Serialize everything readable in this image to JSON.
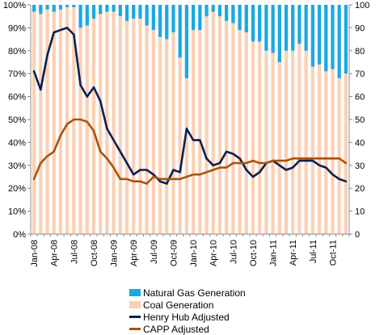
{
  "chart_data": {
    "type": "bar",
    "x": [
      "Jan-08",
      "Feb-08",
      "Mar-08",
      "Apr-08",
      "May-08",
      "Jun-08",
      "Jul-08",
      "Aug-08",
      "Sep-08",
      "Oct-08",
      "Nov-08",
      "Dec-08",
      "Jan-09",
      "Feb-09",
      "Mar-09",
      "Apr-09",
      "May-09",
      "Jun-09",
      "Jul-09",
      "Aug-09",
      "Sep-09",
      "Oct-09",
      "Nov-09",
      "Dec-09",
      "Jan-10",
      "Feb-10",
      "Mar-10",
      "Apr-10",
      "May-10",
      "Jun-10",
      "Jul-10",
      "Aug-10",
      "Sep-10",
      "Oct-10",
      "Nov-10",
      "Dec-10",
      "Jan-11",
      "Feb-11",
      "Mar-11",
      "Apr-11",
      "May-11",
      "Jun-11",
      "Jul-11",
      "Aug-11",
      "Sep-11",
      "Oct-11",
      "Nov-11",
      "Dec-11"
    ],
    "tick_labels": [
      "Jan-08",
      "Apr-08",
      "Jul-08",
      "Oct-08",
      "Jan-09",
      "Apr-09",
      "Jul-09",
      "Oct-09",
      "Jan-10",
      "Apr-10",
      "Jul-10",
      "Oct-10",
      "Jan-11",
      "Apr-11",
      "Jul-11",
      "Oct-11"
    ],
    "left_axis": {
      "range": [
        0,
        100
      ],
      "ticks": [
        "0%",
        "10%",
        "20%",
        "30%",
        "40%",
        "50%",
        "60%",
        "70%",
        "80%",
        "90%",
        "100%"
      ]
    },
    "right_axis": {
      "range": [
        0,
        100
      ],
      "ticks": [
        "0",
        "10",
        "20",
        "30",
        "40",
        "50",
        "60",
        "70",
        "80",
        "90",
        "100"
      ]
    },
    "grid": false,
    "legend_placement": "bottom",
    "series": [
      {
        "name": "Natural Gas Generation",
        "type": "stacked-bar",
        "axis": "left",
        "color": "#1ba9e1",
        "values": [
          3,
          4,
          2,
          3,
          2,
          1,
          1,
          10,
          9,
          6,
          4,
          3,
          3,
          5,
          7,
          6,
          6,
          9,
          11,
          14,
          15,
          12,
          23,
          32,
          11,
          11,
          5,
          3,
          5,
          7,
          8,
          11,
          12,
          16,
          16,
          20,
          21,
          25,
          20,
          20,
          17,
          20,
          27,
          26,
          29,
          28,
          32,
          30
        ]
      },
      {
        "name": "Coal Generation",
        "type": "stacked-bar",
        "axis": "left",
        "color": "#fbd0b4",
        "values": [
          97,
          96,
          98,
          97,
          98,
          99,
          99,
          90,
          91,
          94,
          96,
          97,
          97,
          95,
          93,
          94,
          94,
          91,
          89,
          86,
          85,
          88,
          77,
          68,
          89,
          89,
          95,
          97,
          95,
          93,
          92,
          89,
          88,
          84,
          84,
          80,
          79,
          75,
          80,
          80,
          83,
          80,
          73,
          74,
          71,
          72,
          68,
          70
        ]
      },
      {
        "name": "Henry Hub Adjusted",
        "type": "line",
        "axis": "right",
        "color": "#0c1f4e",
        "values": [
          71,
          63,
          78,
          88,
          89,
          90,
          87,
          65,
          60,
          64,
          58,
          46,
          41,
          36,
          31,
          26,
          28,
          28,
          26,
          23,
          22,
          28,
          27,
          46,
          41,
          41,
          33,
          30,
          31,
          36,
          35,
          33,
          28,
          25,
          27,
          31,
          32,
          30,
          28,
          29,
          32,
          32,
          32,
          30,
          29,
          26,
          24,
          23
        ]
      },
      {
        "name": "CAPP Adjusted",
        "type": "line",
        "axis": "right",
        "color": "#a9530f",
        "values": [
          24,
          31,
          34,
          36,
          43,
          48,
          50,
          50,
          49,
          45,
          36,
          33,
          29,
          24,
          24,
          23,
          23,
          22,
          25,
          24,
          24,
          24,
          24,
          25,
          26,
          26,
          27,
          28,
          29,
          29,
          31,
          31,
          31,
          32,
          31,
          31,
          32,
          32,
          32,
          33,
          33,
          33,
          33,
          33,
          33,
          33,
          33,
          31
        ]
      }
    ]
  }
}
